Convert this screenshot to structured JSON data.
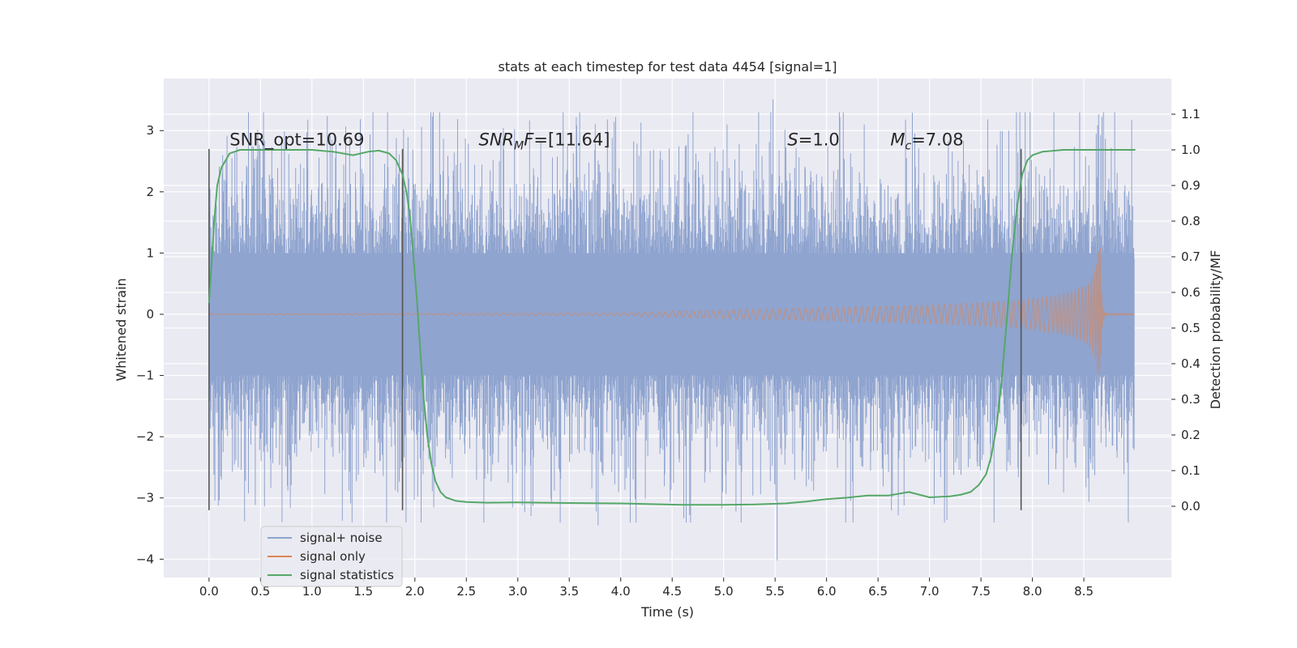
{
  "chart_data": {
    "type": "line",
    "title": "stats at each timestep for test data 4454 [signal=1]",
    "xlabel": "Time (s)",
    "ylabel": "Whitened strain",
    "y2label": "Detection probability/MF",
    "xlim": [
      -0.44,
      9.35
    ],
    "ylim": [
      -4.3,
      3.85
    ],
    "y2lim": [
      -0.2,
      1.2
    ],
    "xticks": [
      0.0,
      0.5,
      1.0,
      1.5,
      2.0,
      2.5,
      3.0,
      3.5,
      4.0,
      4.5,
      5.0,
      5.5,
      6.0,
      6.5,
      7.0,
      7.5,
      8.0,
      8.5
    ],
    "xtick_labels": [
      "0.0",
      "0.5",
      "1.0",
      "1.5",
      "2.0",
      "2.5",
      "3.0",
      "3.5",
      "4.0",
      "4.5",
      "5.0",
      "5.5",
      "6.0",
      "6.5",
      "7.0",
      "7.5",
      "8.0",
      "8.5"
    ],
    "yticks": [
      3,
      2,
      1,
      0,
      -1,
      -2,
      -3,
      -4
    ],
    "ytick_labels": [
      "3",
      "2",
      "1",
      "0",
      "−1",
      "−2",
      "−3",
      "−4"
    ],
    "y2ticks": [
      1.1,
      1.0,
      0.9,
      0.8,
      0.7,
      0.6,
      0.5,
      0.4,
      0.3,
      0.2,
      0.1,
      0.0
    ],
    "y2tick_labels": [
      "1.1",
      "1.0",
      "0.9",
      "0.8",
      "0.7",
      "0.6",
      "0.5",
      "0.4",
      "0.3",
      "0.2",
      "0.1",
      "0.0"
    ],
    "grid": true,
    "legend_position": "lower-left",
    "colors": {
      "background": "#eaeaf2",
      "grid": "#ffffff",
      "noise": "#8fa4cf",
      "signal": "#dd8452",
      "stats": "#55a868",
      "vline": "#555555"
    },
    "series": [
      {
        "name": "signal+ noise",
        "type": "noise-band",
        "t_start": 0.0,
        "t_end": 8.99,
        "dense_band": [
          -1.0,
          1.0
        ],
        "spike_range": [
          -4.02,
          3.51
        ]
      },
      {
        "name": "signal only",
        "type": "chirp",
        "t_start": 0.0,
        "t_merger": 8.66,
        "t_end": 8.99,
        "envelope": {
          "t": [
            0.0,
            4.0,
            4.5,
            5.0,
            5.5,
            6.0,
            6.5,
            7.0,
            7.5,
            7.8,
            8.0,
            8.2,
            8.4,
            8.55,
            8.62,
            8.66
          ],
          "amp": [
            0.01,
            0.02,
            0.05,
            0.07,
            0.09,
            0.11,
            0.13,
            0.15,
            0.19,
            0.22,
            0.25,
            0.3,
            0.38,
            0.5,
            0.8,
            1.2
          ]
        }
      },
      {
        "name": "signal statistics",
        "type": "line",
        "axis": "right",
        "x": [
          0.0,
          0.05,
          0.08,
          0.12,
          0.2,
          0.3,
          0.5,
          0.8,
          1.0,
          1.2,
          1.4,
          1.55,
          1.65,
          1.75,
          1.82,
          1.88,
          1.92,
          1.95,
          1.98,
          2.02,
          2.05,
          2.08,
          2.12,
          2.16,
          2.2,
          2.25,
          2.3,
          2.4,
          2.5,
          2.7,
          3.0,
          3.5,
          4.0,
          4.3,
          4.6,
          5.0,
          5.3,
          5.6,
          5.8,
          6.0,
          6.2,
          6.4,
          6.6,
          6.8,
          7.0,
          7.2,
          7.3,
          7.4,
          7.48,
          7.55,
          7.6,
          7.65,
          7.7,
          7.75,
          7.8,
          7.85,
          7.9,
          7.95,
          8.0,
          8.1,
          8.3,
          8.6,
          9.0
        ],
        "y": [
          0.57,
          0.8,
          0.9,
          0.95,
          0.99,
          1.0,
          1.0,
          1.0,
          1.0,
          0.995,
          0.985,
          0.995,
          0.998,
          0.99,
          0.97,
          0.93,
          0.88,
          0.82,
          0.72,
          0.58,
          0.45,
          0.32,
          0.2,
          0.12,
          0.07,
          0.04,
          0.025,
          0.015,
          0.012,
          0.01,
          0.011,
          0.009,
          0.008,
          0.006,
          0.004,
          0.004,
          0.005,
          0.008,
          0.013,
          0.02,
          0.024,
          0.03,
          0.03,
          0.04,
          0.025,
          0.028,
          0.032,
          0.04,
          0.06,
          0.09,
          0.14,
          0.22,
          0.35,
          0.52,
          0.7,
          0.84,
          0.93,
          0.97,
          0.985,
          0.995,
          1.0,
          1.0,
          1.0
        ]
      }
    ],
    "vlines": [
      {
        "x": 0.0,
        "y_range": [
          -3.2,
          2.7
        ]
      },
      {
        "x": 1.88,
        "y_range": [
          -3.2,
          2.7
        ]
      },
      {
        "x": 7.89,
        "y_range": [
          -3.2,
          2.7
        ]
      }
    ],
    "annotations": [
      {
        "id": "snr-opt",
        "x": 0.2,
        "y": 2.85,
        "text": "SNR_opt=10.69"
      },
      {
        "id": "snr-mf",
        "x": 2.62,
        "y": 2.85,
        "pre": "SNR",
        "sub": "M",
        "post": "F=[11.64]",
        "italic": true
      },
      {
        "id": "s-val",
        "x": 5.62,
        "y": 2.85,
        "pre": "S",
        "sub": "",
        "post": "=1.0",
        "italic": true
      },
      {
        "id": "mc-val",
        "x": 6.62,
        "y": 2.85,
        "pre": "M",
        "sub": "c",
        "post": "=7.08",
        "italic": true
      }
    ],
    "legend": [
      {
        "label": "signal+ noise",
        "color": "#8fa4cf"
      },
      {
        "label": "signal only",
        "color": "#dd8452"
      },
      {
        "label": "signal statistics",
        "color": "#55a868"
      }
    ]
  }
}
